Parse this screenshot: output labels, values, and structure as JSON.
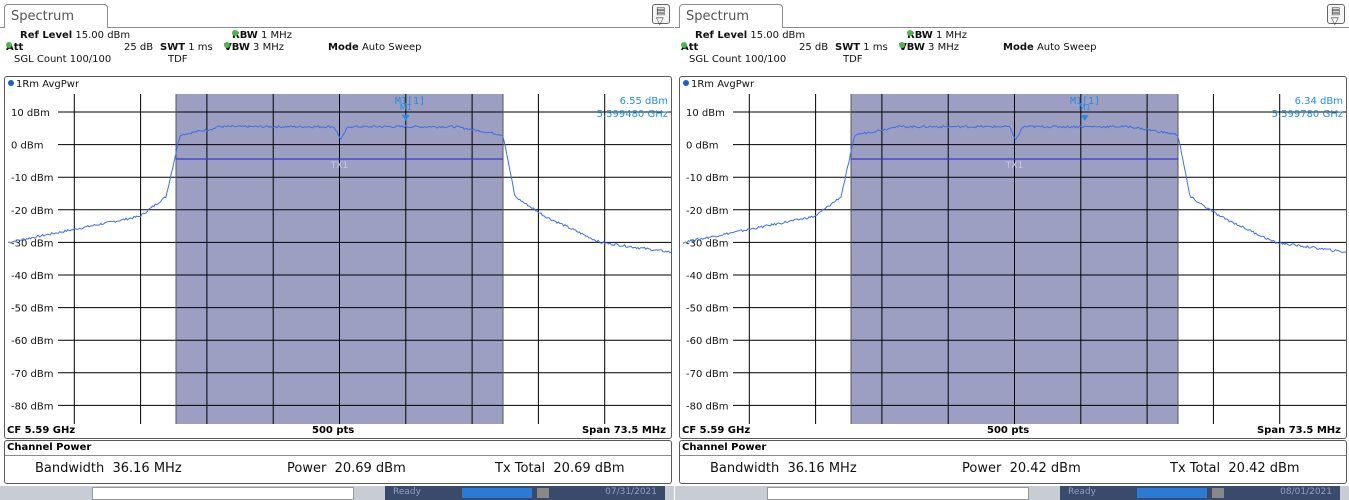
{
  "screens": [
    {
      "tab_label": "Spectrum",
      "header": {
        "ref_level_label": "Ref Level",
        "ref_level_value": "15.00 dBm",
        "att_label": "Att",
        "att_value": "25 dB",
        "swt_label": "SWT",
        "swt_value": "1 ms",
        "rbw_label": "RBW",
        "rbw_value": "1 MHz",
        "vbw_label": "VBW",
        "vbw_value": "3 MHz",
        "mode_label": "Mode",
        "mode_value": "Auto Sweep",
        "sgl_count": "SGL Count 100/100",
        "tdf": "TDF"
      },
      "trace_label": "1Rm AvgPwr",
      "marker": {
        "id": "M1[1]",
        "tag": "M1",
        "level": "6.55 dBm",
        "freq": "5.599480 GHz",
        "x_rel": 0.6
      },
      "channel_label": "TX1",
      "axis": {
        "cf": "CF 5.59 GHz",
        "pts": "500 pts",
        "span": "Span 73.5 MHz"
      },
      "result": {
        "header": "Channel Power",
        "bandwidth_label": "Bandwidth",
        "bandwidth_value": "36.16 MHz",
        "power_label": "Power",
        "power_value": "20.69 dBm",
        "tx_total_label": "Tx Total",
        "tx_total_value": "20.69 dBm"
      },
      "status": {
        "ready": "Ready",
        "date": "07/31/2021"
      }
    },
    {
      "tab_label": "Spectrum",
      "header": {
        "ref_level_label": "Ref Level",
        "ref_level_value": "15.00 dBm",
        "att_label": "Att",
        "att_value": "25 dB",
        "swt_label": "SWT",
        "swt_value": "1 ms",
        "rbw_label": "RBW",
        "rbw_value": "1 MHz",
        "vbw_label": "VBW",
        "vbw_value": "3 MHz",
        "mode_label": "Mode",
        "mode_value": "Auto Sweep",
        "sgl_count": "SGL Count 100/100",
        "tdf": "TDF"
      },
      "trace_label": "1Rm AvgPwr",
      "marker": {
        "id": "M1[1]",
        "tag": "M1",
        "level": "6.34 dBm",
        "freq": "5.599780 GHz",
        "x_rel": 0.606
      },
      "channel_label": "TX1",
      "axis": {
        "cf": "CF 5.59 GHz",
        "pts": "500 pts",
        "span": "Span 73.5 MHz"
      },
      "result": {
        "header": "Channel Power",
        "bandwidth_label": "Bandwidth",
        "bandwidth_value": "36.16 MHz",
        "power_label": "Power",
        "power_value": "20.42 dBm",
        "tx_total_label": "Tx Total",
        "tx_total_value": "20.42 dBm"
      },
      "status": {
        "ready": "Ready",
        "date": "08/01/2021"
      }
    }
  ],
  "y_axis": {
    "ticks": [
      "10 dBm",
      "0 dBm",
      "-10 dBm",
      "-20 dBm",
      "-30 dBm",
      "-40 dBm",
      "-50 dBm",
      "-60 dBm",
      "-70 dBm",
      "-80 dBm"
    ]
  },
  "colors": {
    "trace": "#3f6fe6",
    "channel_fill": "#9d9fc2",
    "channel_line": "#3a3ac8",
    "marker_text": "#1f8fe0",
    "grid": "#000000",
    "ok_dot": "#4ab84a"
  },
  "icons": {
    "corner_icon": "display-config-icon"
  }
}
